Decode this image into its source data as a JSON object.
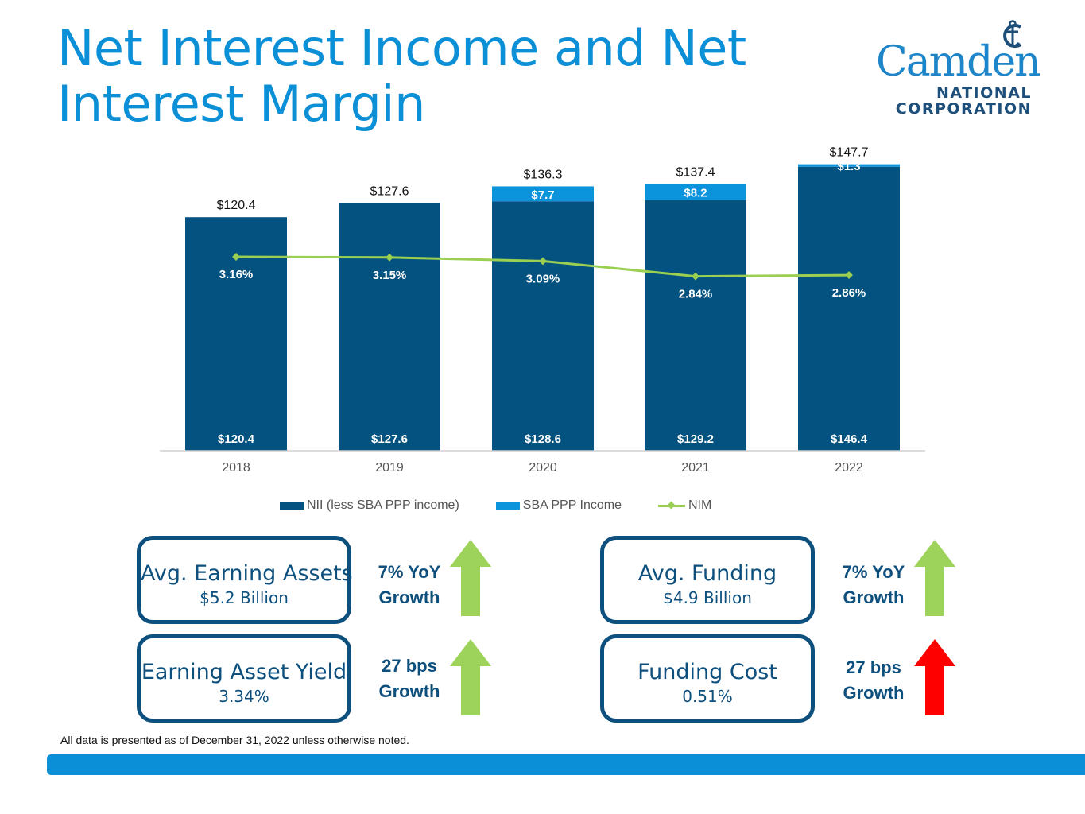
{
  "page": {
    "title": "Net Interest Income and Net Interest Margin",
    "footnote": "All data is presented as of December 31, 2022 unless otherwise noted."
  },
  "logo": {
    "word": "Camden",
    "line1": "NATIONAL",
    "line2": "CORPORATION",
    "icon": "anchor-icon",
    "color": "#1e86c8"
  },
  "colors": {
    "nii": "#03527f",
    "sba": "#0b93dc",
    "nim": "#9bcf52",
    "title": "#0b8fd6",
    "box": "#0d4f7d",
    "up_green": "#9ed35b",
    "up_red": "#ff0000"
  },
  "chart_data": {
    "type": "bar",
    "stacked": true,
    "categories": [
      "2018",
      "2019",
      "2020",
      "2021",
      "2022"
    ],
    "series": [
      {
        "name": "NII (less SBA PPP income)",
        "values": [
          120.4,
          127.6,
          128.6,
          129.2,
          146.4
        ],
        "labels": [
          "$120.4",
          "$127.6",
          "$128.6",
          "$129.2",
          "$146.4"
        ]
      },
      {
        "name": "SBA PPP Income",
        "values": [
          0,
          0,
          7.7,
          8.2,
          1.3
        ],
        "labels": [
          "",
          "",
          "$7.7",
          "$8.2",
          "$1.3"
        ]
      }
    ],
    "totals": [
      120.4,
      127.6,
      136.3,
      137.4,
      147.7
    ],
    "total_labels": [
      "$120.4",
      "$127.6",
      "$136.3",
      "$137.4",
      "$147.7"
    ],
    "line_series": {
      "name": "NIM",
      "values": [
        3.16,
        3.15,
        3.09,
        2.84,
        2.86
      ],
      "labels": [
        "3.16%",
        "3.15%",
        "3.09%",
        "2.84%",
        "2.86%"
      ]
    },
    "ylim": [
      0,
      150
    ],
    "grid": false,
    "legend": "bottom"
  },
  "legend": {
    "nii": "NII (less SBA PPP income)",
    "sba": "SBA PPP Income",
    "nim": "NIM"
  },
  "kpis": [
    {
      "name": "Avg. Earning Assets",
      "value": "$5.2 Billion",
      "growth1": "7% YoY",
      "growth2": "Growth",
      "direction": "up",
      "color": "green"
    },
    {
      "name": "Avg. Funding",
      "value": "$4.9 Billion",
      "growth1": "7% YoY",
      "growth2": "Growth",
      "direction": "up",
      "color": "green"
    },
    {
      "name": "Earning Asset Yield",
      "value": "3.34%",
      "growth1": "27 bps",
      "growth2": "Growth",
      "direction": "up",
      "color": "green"
    },
    {
      "name": "Funding Cost",
      "value": "0.51%",
      "growth1": "27 bps",
      "growth2": "Growth",
      "direction": "up",
      "color": "red"
    }
  ]
}
